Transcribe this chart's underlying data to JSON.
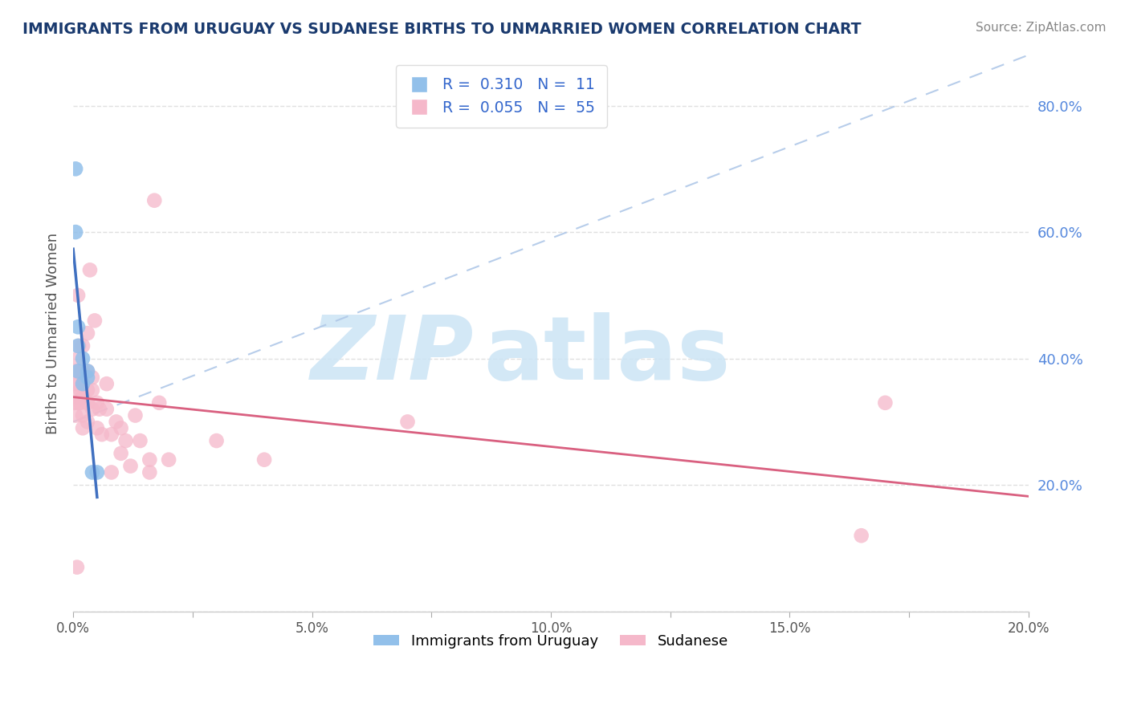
{
  "title": "IMMIGRANTS FROM URUGUAY VS SUDANESE BIRTHS TO UNMARRIED WOMEN CORRELATION CHART",
  "source": "Source: ZipAtlas.com",
  "ylabel": "Births to Unmarried Women",
  "legend_label1": "Immigrants from Uruguay",
  "legend_label2": "Sudanese",
  "R1": 0.31,
  "N1": 11,
  "R2": 0.055,
  "N2": 55,
  "color1": "#92c0ea",
  "color2": "#f5b8ca",
  "line_color1": "#4070c0",
  "line_color2": "#d96080",
  "xmin": 0.0,
  "xmax": 0.2,
  "ymin": 0.0,
  "ymax": 0.88,
  "yticks_right": [
    0.2,
    0.4,
    0.6,
    0.8
  ],
  "xticks": [
    0.0,
    0.025,
    0.05,
    0.075,
    0.1,
    0.125,
    0.15,
    0.175,
    0.2
  ],
  "xtick_labels": [
    "0.0%",
    "",
    "5.0%",
    "",
    "10.0%",
    "",
    "15.0%",
    "",
    "20.0%"
  ],
  "blue_points_x": [
    0.0005,
    0.0005,
    0.001,
    0.001,
    0.001,
    0.002,
    0.002,
    0.003,
    0.003,
    0.004,
    0.005
  ],
  "blue_points_y": [
    0.7,
    0.6,
    0.38,
    0.42,
    0.45,
    0.36,
    0.4,
    0.37,
    0.38,
    0.22,
    0.22
  ],
  "pink_points_x": [
    0.0003,
    0.0003,
    0.0004,
    0.0005,
    0.0006,
    0.0008,
    0.001,
    0.001,
    0.001,
    0.001,
    0.001,
    0.0012,
    0.0015,
    0.0015,
    0.002,
    0.002,
    0.002,
    0.002,
    0.002,
    0.002,
    0.003,
    0.003,
    0.003,
    0.003,
    0.003,
    0.0035,
    0.004,
    0.004,
    0.004,
    0.0045,
    0.005,
    0.005,
    0.0055,
    0.006,
    0.007,
    0.007,
    0.008,
    0.008,
    0.009,
    0.01,
    0.01,
    0.011,
    0.012,
    0.013,
    0.014,
    0.016,
    0.016,
    0.017,
    0.018,
    0.02,
    0.03,
    0.04,
    0.07,
    0.165,
    0.17
  ],
  "pink_points_y": [
    0.33,
    0.36,
    0.38,
    0.31,
    0.34,
    0.07,
    0.33,
    0.36,
    0.38,
    0.4,
    0.5,
    0.42,
    0.33,
    0.35,
    0.29,
    0.31,
    0.34,
    0.36,
    0.38,
    0.42,
    0.3,
    0.33,
    0.35,
    0.38,
    0.44,
    0.54,
    0.32,
    0.35,
    0.37,
    0.46,
    0.29,
    0.33,
    0.32,
    0.28,
    0.32,
    0.36,
    0.22,
    0.28,
    0.3,
    0.25,
    0.29,
    0.27,
    0.23,
    0.31,
    0.27,
    0.22,
    0.24,
    0.65,
    0.33,
    0.24,
    0.27,
    0.24,
    0.3,
    0.12,
    0.33
  ],
  "diag_color": "#b0c8e8",
  "watermark_color": "#cce4f5",
  "background_color": "#ffffff",
  "grid_color": "#e0e0e0"
}
